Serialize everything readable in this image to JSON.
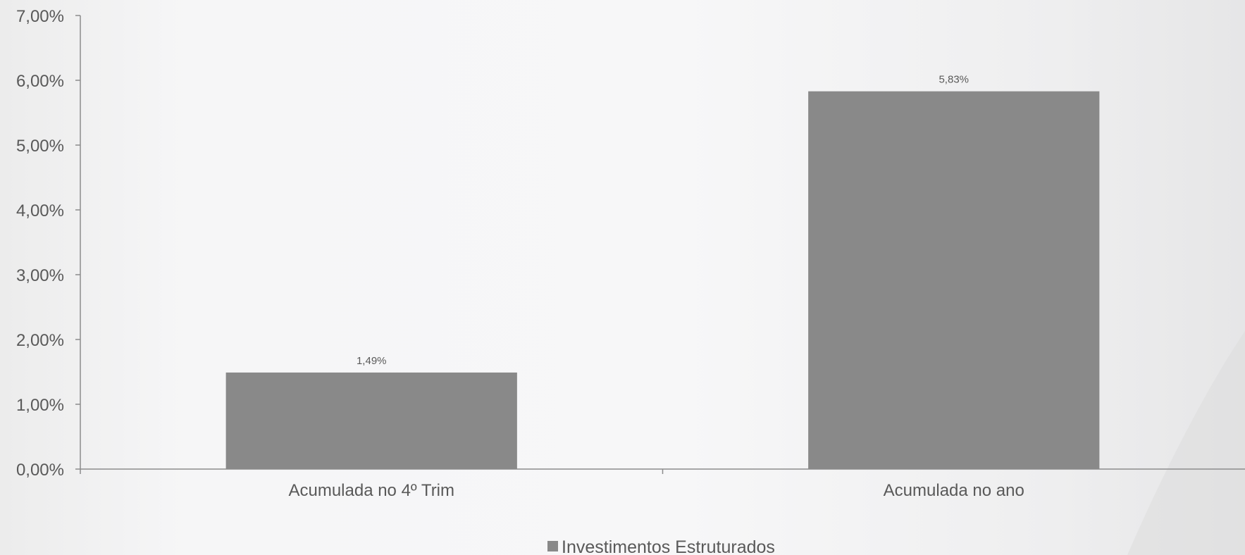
{
  "chart_data": {
    "type": "bar",
    "categories": [
      "Acumulada no 4º Trim",
      "Acumulada no ano"
    ],
    "series": [
      {
        "name": "Investimentos Estruturados",
        "values": [
          1.49,
          5.83
        ],
        "data_labels": [
          "1,49%",
          "5,83%"
        ]
      }
    ],
    "ylim": [
      0,
      7
    ],
    "yticks": [
      0,
      1,
      2,
      3,
      4,
      5,
      6,
      7
    ],
    "ytick_labels": [
      "0,00%",
      "1,00%",
      "2,00%",
      "3,00%",
      "4,00%",
      "5,00%",
      "6,00%",
      "7,00%"
    ],
    "grid": false,
    "legend_position": "bottom",
    "colors": {
      "bar": "#898989",
      "axis": "#8c8c8c",
      "text": "#595959",
      "decor_wedge": "#d7d7d8"
    }
  }
}
